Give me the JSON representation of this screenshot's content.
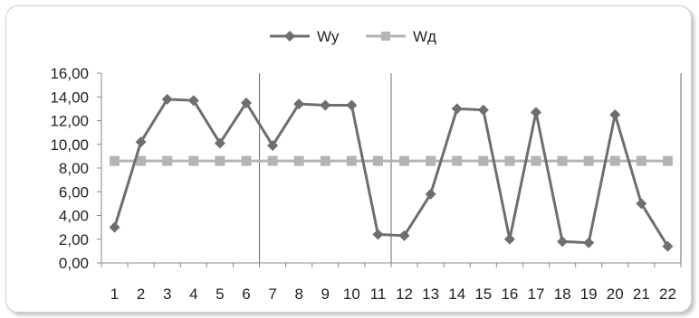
{
  "chart_data": {
    "type": "line",
    "title": "",
    "xlabel": "",
    "ylabel": "",
    "categories": [
      "1",
      "2",
      "3",
      "4",
      "5",
      "6",
      "7",
      "8",
      "9",
      "10",
      "11",
      "12",
      "13",
      "14",
      "15",
      "16",
      "17",
      "18",
      "19",
      "20",
      "21",
      "22"
    ],
    "y_ticks": [
      "0,00",
      "2,00",
      "4,00",
      "6,00",
      "8,00",
      "10,00",
      "12,00",
      "14,00",
      "16,00"
    ],
    "ylim": [
      0,
      16
    ],
    "grid": "vertical gridlines at 6, 11 and 22",
    "legend": "top-center",
    "series": [
      {
        "name": "Wy",
        "color": "#6e6e6e",
        "marker": "diamond",
        "values": [
          3.0,
          10.2,
          13.8,
          13.7,
          10.1,
          13.5,
          9.9,
          13.4,
          13.3,
          13.3,
          2.4,
          2.3,
          5.8,
          13.0,
          12.9,
          2.0,
          12.7,
          1.8,
          1.7,
          12.5,
          5.0,
          1.4
        ]
      },
      {
        "name": "Wд",
        "color": "#b4b4b4",
        "marker": "square",
        "values": [
          8.6,
          8.6,
          8.6,
          8.6,
          8.6,
          8.6,
          8.6,
          8.6,
          8.6,
          8.6,
          8.6,
          8.6,
          8.6,
          8.6,
          8.6,
          8.6,
          8.6,
          8.6,
          8.6,
          8.6,
          8.6,
          8.6
        ]
      }
    ]
  }
}
